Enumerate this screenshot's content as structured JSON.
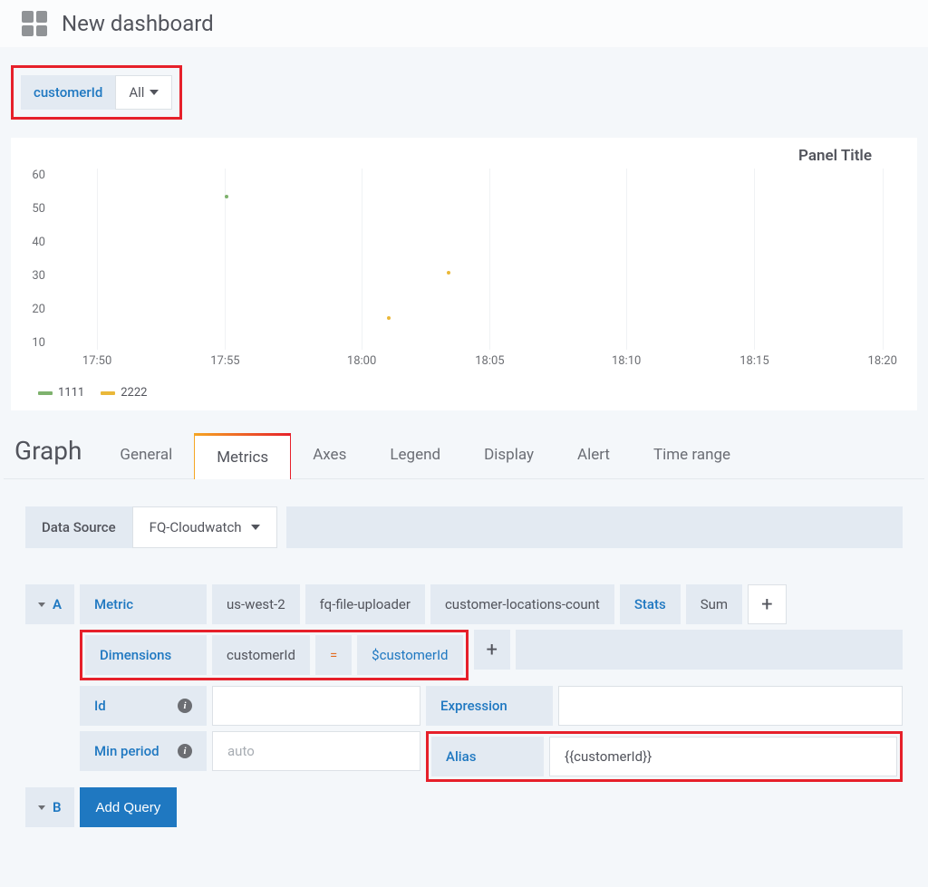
{
  "header": {
    "title": "New dashboard"
  },
  "variable": {
    "label": "customerId",
    "value": "All"
  },
  "panel": {
    "title": "Panel Title",
    "chart": {
      "ylim": [
        0,
        60
      ],
      "ytick_step": 10,
      "yticks": [
        "60",
        "50",
        "40",
        "30",
        "20",
        "10"
      ],
      "xticks": [
        {
          "pos": 0.05,
          "label": "17:50"
        },
        {
          "pos": 0.2,
          "label": "17:55"
        },
        {
          "pos": 0.36,
          "label": "18:00"
        },
        {
          "pos": 0.51,
          "label": "18:05"
        },
        {
          "pos": 0.67,
          "label": "18:10"
        },
        {
          "pos": 0.82,
          "label": "18:15"
        },
        {
          "pos": 0.97,
          "label": "18:20"
        }
      ],
      "grid_color": "#f0f2f4",
      "points": [
        {
          "x": 0.2,
          "y": 50,
          "color": "#7eb26d"
        },
        {
          "x": 0.39,
          "y": 10,
          "color": "#eab839"
        },
        {
          "x": 0.46,
          "y": 25,
          "color": "#eab839"
        }
      ],
      "legend": [
        {
          "label": "1111",
          "color": "#7eb26d"
        },
        {
          "label": "2222",
          "color": "#eab839"
        }
      ]
    }
  },
  "editor": {
    "type_label": "Graph",
    "tabs": [
      "General",
      "Metrics",
      "Axes",
      "Legend",
      "Display",
      "Alert",
      "Time range"
    ],
    "active_tab": "Metrics",
    "datasource": {
      "label": "Data Source",
      "value": "FQ-Cloudwatch"
    },
    "queryA": {
      "letter": "A",
      "metric_label": "Metric",
      "region": "us-west-2",
      "namespace": "fq-file-uploader",
      "metric_name": "customer-locations-count",
      "stats_label": "Stats",
      "stats_value": "Sum",
      "dimensions_label": "Dimensions",
      "dim_key": "customerId",
      "dim_op": "=",
      "dim_val": "$customerId",
      "id_label": "Id",
      "expression_label": "Expression",
      "minperiod_label": "Min period",
      "minperiod_placeholder": "auto",
      "alias_label": "Alias",
      "alias_value": "{{customerId}}"
    },
    "queryB": {
      "letter": "B",
      "add_label": "Add Query"
    }
  },
  "highlights": {
    "color": "#e6202a"
  }
}
